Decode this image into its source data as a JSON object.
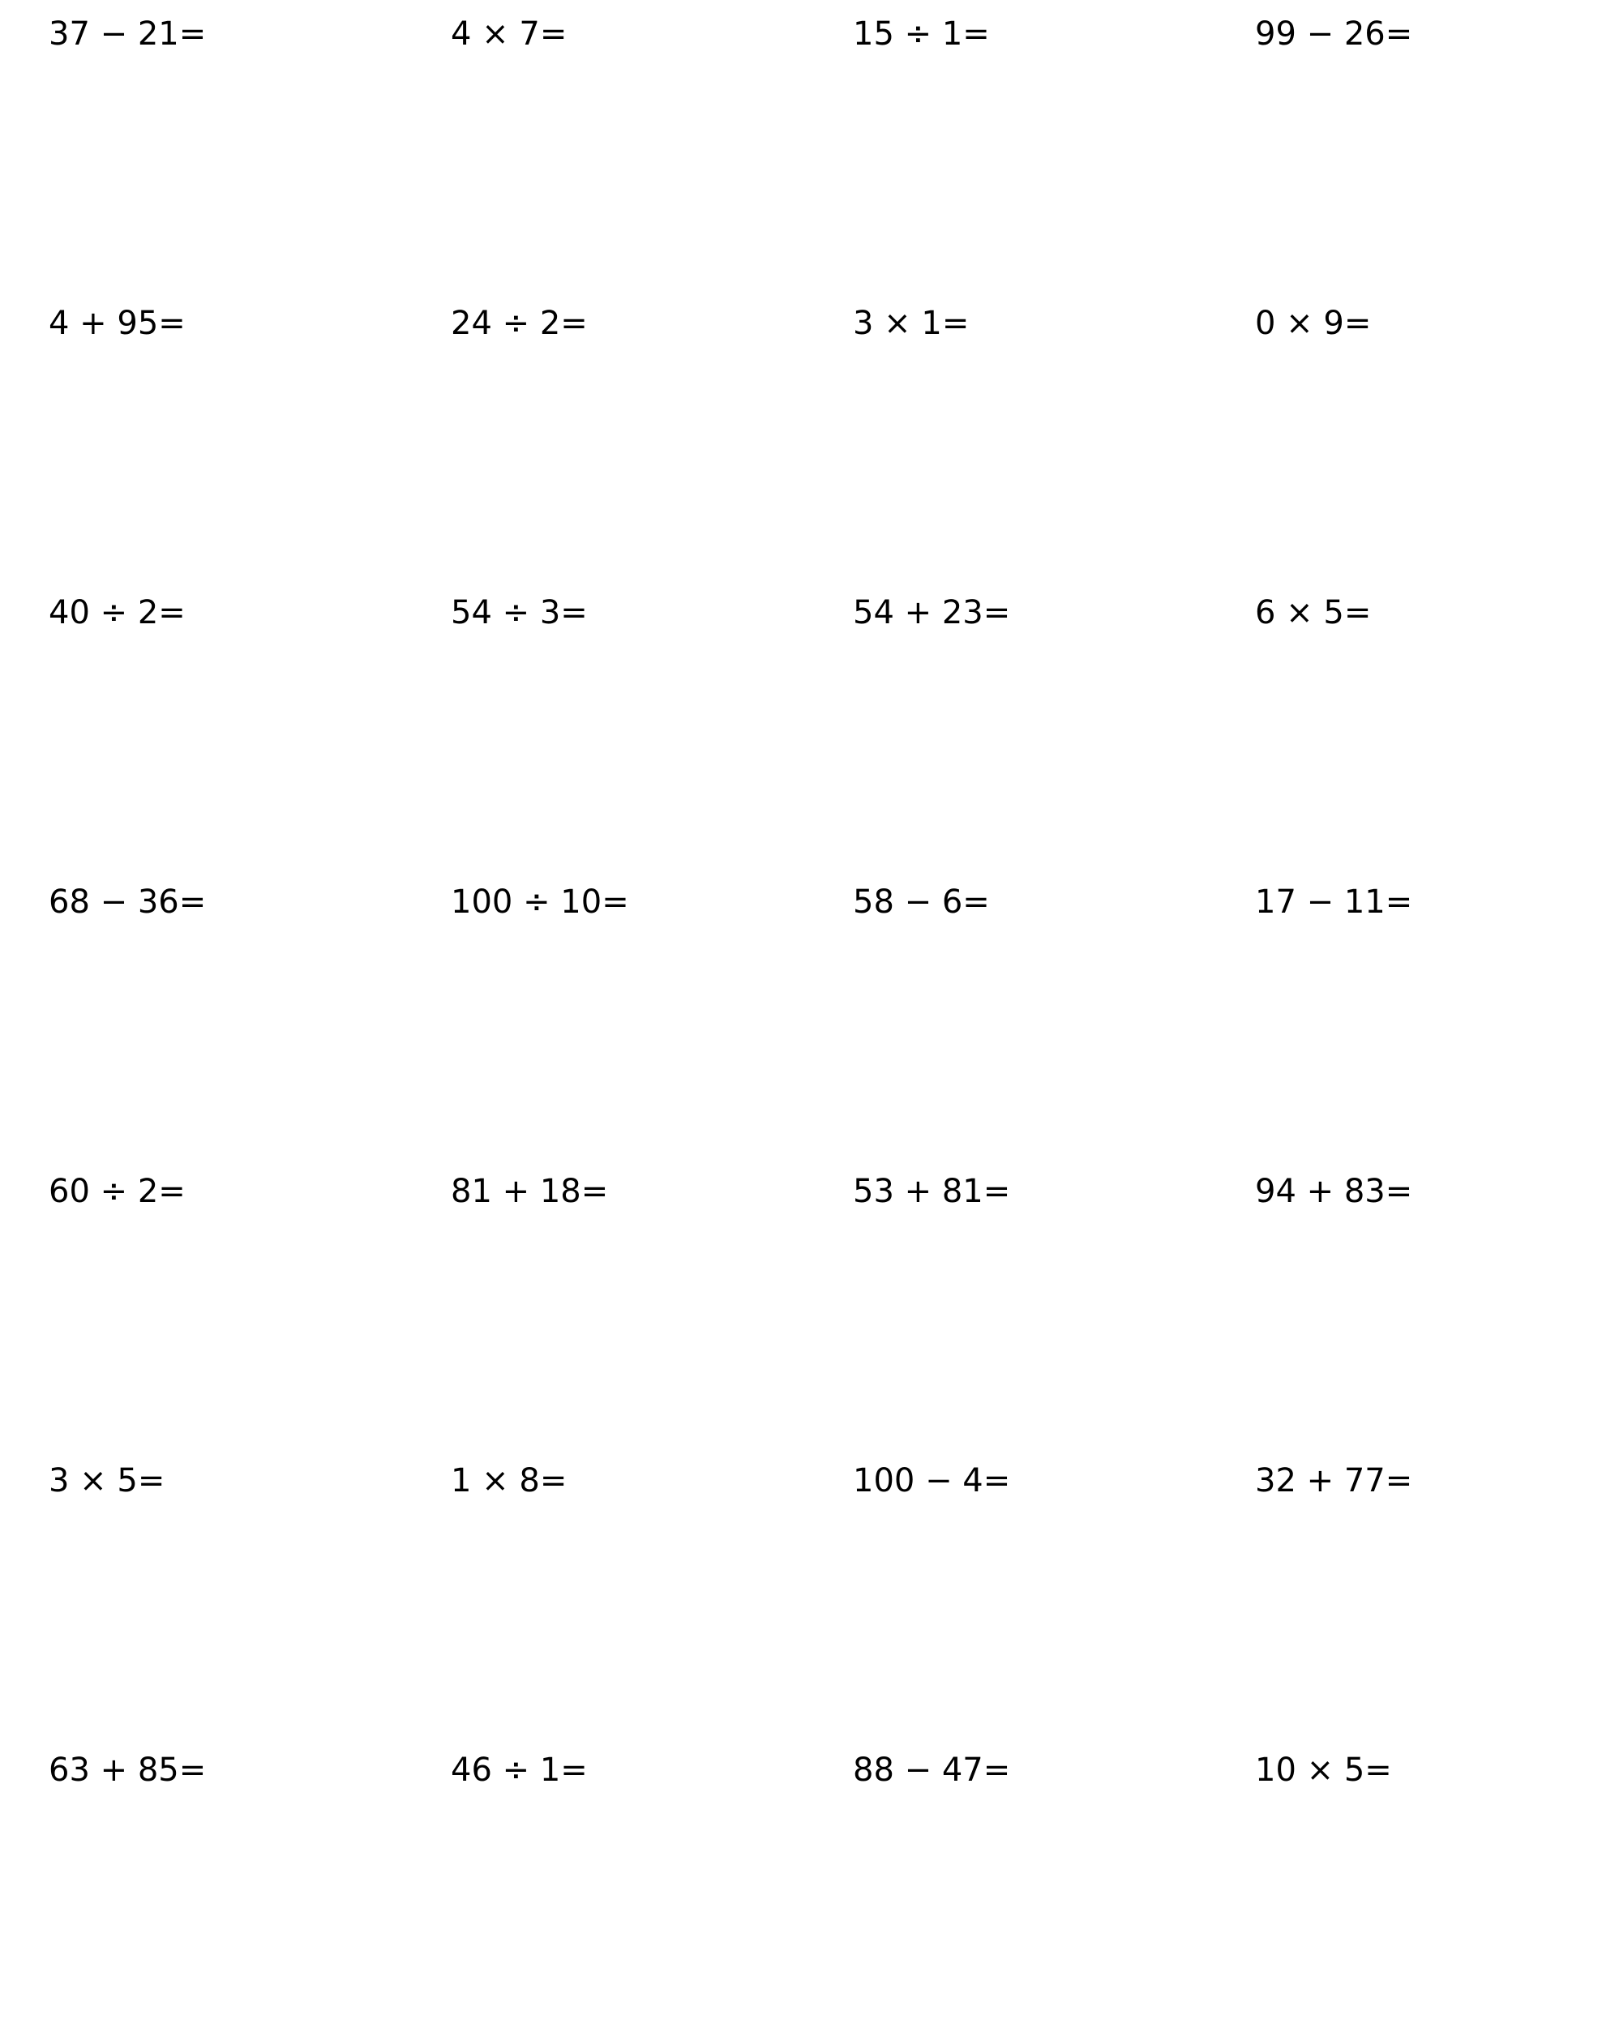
{
  "worksheet": {
    "rows": [
      [
        "37 − 21=",
        "4 × 7=",
        "15 ÷ 1=",
        "99 − 26="
      ],
      [
        "4 + 95=",
        "24 ÷ 2=",
        "3 × 1=",
        "0 × 9="
      ],
      [
        "40 ÷ 2=",
        "54 ÷ 3=",
        "54 + 23=",
        "6 × 5="
      ],
      [
        "68 − 36=",
        "100 ÷ 10=",
        "58 − 6=",
        "17 − 11="
      ],
      [
        "60 ÷ 2=",
        "81 + 18=",
        "53 + 81=",
        "94 + 83="
      ],
      [
        "3 × 5=",
        "1 × 8=",
        "100 − 4=",
        "32 + 77="
      ],
      [
        "63 + 85=",
        "46 ÷ 1=",
        "88 − 47=",
        "10 × 5="
      ]
    ]
  }
}
